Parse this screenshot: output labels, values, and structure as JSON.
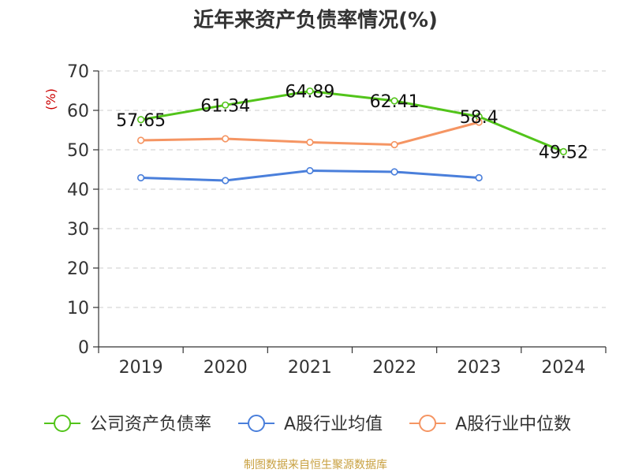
{
  "chart_data": {
    "type": "line",
    "title": "近年来资产负债率情况(%)",
    "ylabel": "(%)",
    "ylim": [
      0,
      70
    ],
    "yticks": [
      0,
      10,
      20,
      30,
      40,
      50,
      60,
      70
    ],
    "categories": [
      "2019",
      "2020",
      "2021",
      "2022",
      "2023",
      "2024"
    ],
    "series": [
      {
        "name": "公司资产负债率",
        "color": "#52c41a",
        "values": [
          57.65,
          61.34,
          64.89,
          62.41,
          58.4,
          49.52
        ],
        "labels": [
          "57.65",
          "61.34",
          "64.89",
          "62.41",
          "58.4",
          "49.52"
        ]
      },
      {
        "name": "A股行业均值",
        "color": "#4a7fdb",
        "values": [
          42.9,
          42.2,
          44.7,
          44.4,
          42.9,
          null
        ]
      },
      {
        "name": "A股行业中位数",
        "color": "#f59563",
        "values": [
          52.4,
          52.8,
          51.9,
          51.3,
          57.0,
          null
        ]
      }
    ],
    "grid": true,
    "legend_position": "bottom"
  },
  "source": "制图数据来自恒生聚源数据库"
}
